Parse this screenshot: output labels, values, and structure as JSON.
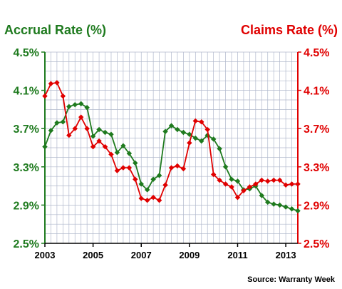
{
  "chart_data": {
    "type": "line",
    "left_title": "Accrual Rate (%)",
    "right_title": "Claims Rate (%)",
    "source": "Source: Warranty Week",
    "x_ticks": [
      "2003",
      "2005",
      "2007",
      "2009",
      "2011",
      "2013"
    ],
    "x_tick_values": [
      2003,
      2005,
      2007,
      2009,
      2011,
      2013
    ],
    "xlim": [
      2003,
      2013.5
    ],
    "ylim": [
      2.5,
      4.5
    ],
    "y_ticks": [
      "2.5%",
      "2.9%",
      "3.3%",
      "3.7%",
      "4.1%",
      "4.5%"
    ],
    "y_tick_values": [
      2.5,
      2.9,
      3.3,
      3.7,
      4.1,
      4.5
    ],
    "grid": true,
    "colors": {
      "accrual": "#1e7a1e",
      "claims": "#e00000",
      "left_axis": "#1e7a1e",
      "right_axis": "#e00000",
      "grid": "#b0b8cc",
      "text": "#000000"
    },
    "series": [
      {
        "name": "Accrual Rate (%)",
        "axis": "left",
        "values": [
          [
            2003.0,
            3.51
          ],
          [
            2003.25,
            3.68
          ],
          [
            2003.5,
            3.76
          ],
          [
            2003.75,
            3.77
          ],
          [
            2004.0,
            3.93
          ],
          [
            2004.25,
            3.95
          ],
          [
            2004.5,
            3.96
          ],
          [
            2004.75,
            3.92
          ],
          [
            2005.0,
            3.62
          ],
          [
            2005.25,
            3.69
          ],
          [
            2005.5,
            3.66
          ],
          [
            2005.75,
            3.64
          ],
          [
            2006.0,
            3.45
          ],
          [
            2006.25,
            3.52
          ],
          [
            2006.5,
            3.44
          ],
          [
            2006.75,
            3.34
          ],
          [
            2007.0,
            3.12
          ],
          [
            2007.25,
            3.06
          ],
          [
            2007.5,
            3.17
          ],
          [
            2007.75,
            3.21
          ],
          [
            2008.0,
            3.67
          ],
          [
            2008.25,
            3.73
          ],
          [
            2008.5,
            3.69
          ],
          [
            2008.75,
            3.66
          ],
          [
            2009.0,
            3.64
          ],
          [
            2009.25,
            3.6
          ],
          [
            2009.5,
            3.57
          ],
          [
            2009.75,
            3.63
          ],
          [
            2010.0,
            3.59
          ],
          [
            2010.25,
            3.49
          ],
          [
            2010.5,
            3.3
          ],
          [
            2010.75,
            3.17
          ],
          [
            2011.0,
            3.15
          ],
          [
            2011.25,
            3.06
          ],
          [
            2011.5,
            3.07
          ],
          [
            2011.75,
            3.1
          ],
          [
            2012.0,
            3.0
          ],
          [
            2012.25,
            2.93
          ],
          [
            2012.5,
            2.91
          ],
          [
            2012.75,
            2.9
          ],
          [
            2013.0,
            2.88
          ],
          [
            2013.25,
            2.86
          ],
          [
            2013.5,
            2.84
          ]
        ]
      },
      {
        "name": "Claims Rate (%)",
        "axis": "right",
        "values": [
          [
            2003.0,
            4.04
          ],
          [
            2003.25,
            4.17
          ],
          [
            2003.5,
            4.18
          ],
          [
            2003.75,
            4.04
          ],
          [
            2004.0,
            3.63
          ],
          [
            2004.25,
            3.7
          ],
          [
            2004.5,
            3.82
          ],
          [
            2004.75,
            3.7
          ],
          [
            2005.0,
            3.51
          ],
          [
            2005.25,
            3.57
          ],
          [
            2005.5,
            3.51
          ],
          [
            2005.75,
            3.43
          ],
          [
            2006.0,
            3.26
          ],
          [
            2006.25,
            3.29
          ],
          [
            2006.5,
            3.29
          ],
          [
            2006.75,
            3.17
          ],
          [
            2007.0,
            2.97
          ],
          [
            2007.25,
            2.95
          ],
          [
            2007.5,
            2.98
          ],
          [
            2007.75,
            2.95
          ],
          [
            2008.0,
            3.11
          ],
          [
            2008.25,
            3.29
          ],
          [
            2008.5,
            3.31
          ],
          [
            2008.75,
            3.28
          ],
          [
            2009.0,
            3.55
          ],
          [
            2009.25,
            3.78
          ],
          [
            2009.5,
            3.77
          ],
          [
            2009.75,
            3.69
          ],
          [
            2010.0,
            3.22
          ],
          [
            2010.25,
            3.16
          ],
          [
            2010.5,
            3.12
          ],
          [
            2010.75,
            3.09
          ],
          [
            2011.0,
            2.98
          ],
          [
            2011.25,
            3.05
          ],
          [
            2011.5,
            3.09
          ],
          [
            2011.75,
            3.12
          ],
          [
            2012.0,
            3.16
          ],
          [
            2012.25,
            3.15
          ],
          [
            2012.5,
            3.16
          ],
          [
            2012.75,
            3.16
          ],
          [
            2013.0,
            3.11
          ],
          [
            2013.25,
            3.12
          ],
          [
            2013.5,
            3.12
          ]
        ]
      }
    ]
  }
}
